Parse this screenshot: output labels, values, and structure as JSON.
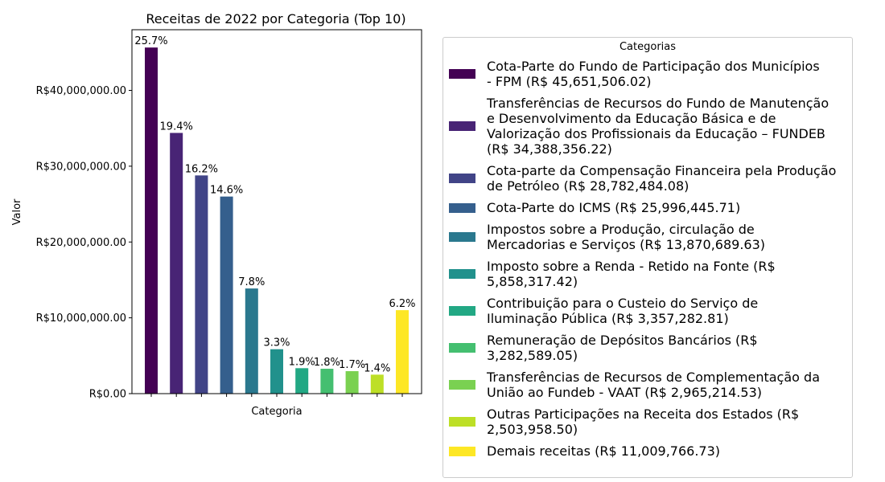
{
  "chart_data": {
    "type": "bar",
    "title": "Receitas de 2022 por Categoria (Top 10)",
    "xlabel": "Categoria",
    "ylabel": "Valor",
    "ylim": [
      0,
      48000000
    ],
    "yticks": [
      0,
      10000000,
      20000000,
      30000000,
      40000000
    ],
    "ytick_labels": [
      "R$0.00",
      "R$10,000,000.00",
      "R$20,000,000.00",
      "R$30,000,000.00",
      "R$40,000,000.00"
    ],
    "grid": false,
    "legend_title": "Categorias",
    "legend_placement": "right",
    "categories": [
      "Cota-Parte do Fundo de Participação dos Municípios - FPM",
      "Transferências de Recursos do Fundo de Manutenção e Desenvolvimento da Educação Básica e de Valorização dos Profissionais da Educação – FUNDEB",
      "Cota-parte da Compensação Financeira pela Produção de Petróleo",
      "Cota-Parte do ICMS",
      "Impostos sobre a Produção, circulação de Mercadorias e Serviços",
      "Imposto sobre a Renda - Retido na Fonte",
      "Contribuição para o Custeio do Serviço de Iluminação Pública",
      "Remuneração de Depósitos Bancários",
      "Transferências de Recursos de Complementação da União ao Fundeb - VAAT",
      "Outras Participações na Receita dos Estados",
      "Demais receitas"
    ],
    "values": [
      45651506.02,
      34388356.22,
      28782484.08,
      25996445.71,
      13870689.63,
      5858317.42,
      3357282.81,
      3282589.05,
      2965214.53,
      2503958.5,
      11009766.73
    ],
    "percent_labels": [
      "25.7%",
      "19.4%",
      "16.2%",
      "14.6%",
      "7.8%",
      "3.3%",
      "1.9%",
      "1.8%",
      "1.7%",
      "1.4%",
      "6.2%"
    ],
    "colors": [
      "#440154",
      "#482475",
      "#414487",
      "#355f8d",
      "#2a788e",
      "#21918c",
      "#22a884",
      "#44bf70",
      "#7ad151",
      "#bddf26",
      "#fde725"
    ],
    "legend_labels": [
      [
        "Cota-Parte do Fundo de Participação dos Municípios",
        "- FPM (R$ 45,651,506.02)"
      ],
      [
        "Transferências de Recursos do Fundo de Manutenção",
        "e Desenvolvimento da Educação Básica e de",
        "Valorização dos Profissionais da Educação – FUNDEB",
        "(R$ 34,388,356.22)"
      ],
      [
        "Cota-parte da Compensação Financeira pela Produção",
        "de Petróleo (R$ 28,782,484.08)"
      ],
      [
        "Cota-Parte do ICMS (R$ 25,996,445.71)"
      ],
      [
        "Impostos sobre a Produção, circulação de",
        "Mercadorias e Serviços (R$ 13,870,689.63)"
      ],
      [
        "Imposto sobre a Renda - Retido na Fonte (R$",
        "5,858,317.42)"
      ],
      [
        "Contribuição para o Custeio do Serviço de",
        "Iluminação Pública (R$ 3,357,282.81)"
      ],
      [
        "Remuneração de Depósitos Bancários (R$",
        "3,282,589.05)"
      ],
      [
        "Transferências de Recursos de Complementação da",
        "União ao Fundeb - VAAT (R$ 2,965,214.53)"
      ],
      [
        "Outras Participações na Receita dos Estados (R$",
        "2,503,958.50)"
      ],
      [
        "Demais receitas (R$ 11,009,766.73)"
      ]
    ]
  }
}
